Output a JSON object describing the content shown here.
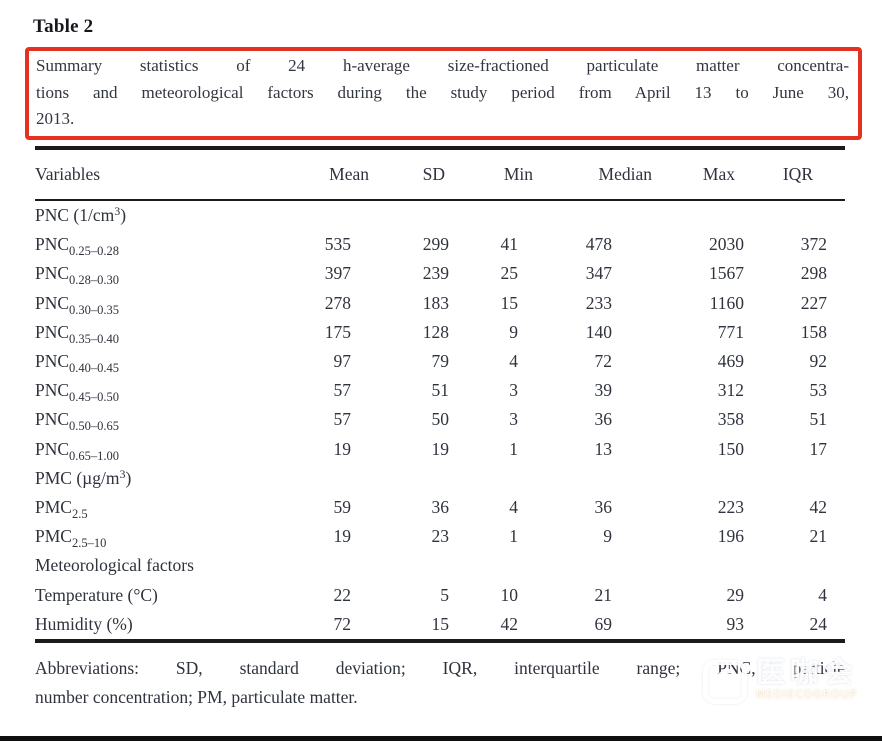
{
  "page": {
    "title": "Table 2",
    "caption_lines": [
      "Summary statistics of 24 h-average size-fractioned particulate matter concentra-",
      "tions and meteorological factors during the study period from April 13 to June 30,",
      "2013."
    ],
    "footnote_lines": [
      "Abbreviations: SD, standard deviation; IQR, interquartile range; PNC, particle",
      "number concentration; PM, particulate matter."
    ]
  },
  "table": {
    "headers": [
      "Variables",
      "Mean",
      "SD",
      "Min",
      "Median",
      "Max",
      "IQR"
    ],
    "rows": [
      {
        "kind": "section",
        "pre": "PNC (1/cm",
        "sup": "3",
        "post": ")"
      },
      {
        "kind": "data",
        "base": "PNC",
        "sub": "0.25–0.28",
        "values": [
          "535",
          "299",
          "41",
          "478",
          "2030",
          "372"
        ]
      },
      {
        "kind": "data",
        "base": "PNC",
        "sub": "0.28–0.30",
        "values": [
          "397",
          "239",
          "25",
          "347",
          "1567",
          "298"
        ]
      },
      {
        "kind": "data",
        "base": "PNC",
        "sub": "0.30–0.35",
        "values": [
          "278",
          "183",
          "15",
          "233",
          "1160",
          "227"
        ]
      },
      {
        "kind": "data",
        "base": "PNC",
        "sub": "0.35–0.40",
        "values": [
          "175",
          "128",
          "9",
          "140",
          "771",
          "158"
        ]
      },
      {
        "kind": "data",
        "base": "PNC",
        "sub": "0.40–0.45",
        "values": [
          "97",
          "79",
          "4",
          "72",
          "469",
          "92"
        ]
      },
      {
        "kind": "data",
        "base": "PNC",
        "sub": "0.45–0.50",
        "values": [
          "57",
          "51",
          "3",
          "39",
          "312",
          "53"
        ]
      },
      {
        "kind": "data",
        "base": "PNC",
        "sub": "0.50–0.65",
        "values": [
          "57",
          "50",
          "3",
          "36",
          "358",
          "51"
        ]
      },
      {
        "kind": "data",
        "base": "PNC",
        "sub": "0.65–1.00",
        "values": [
          "19",
          "19",
          "1",
          "13",
          "150",
          "17"
        ]
      },
      {
        "kind": "section",
        "pre": "PMC (µg/m",
        "sup": "3",
        "post": ")"
      },
      {
        "kind": "data",
        "base": "PMC",
        "sub": "2.5",
        "values": [
          "59",
          "36",
          "4",
          "36",
          "223",
          "42"
        ]
      },
      {
        "kind": "data",
        "base": "PMC",
        "sub": "2.5–10",
        "values": [
          "19",
          "23",
          "1",
          "9",
          "196",
          "21"
        ]
      },
      {
        "kind": "section",
        "pre": "Meteorological factors",
        "sup": "",
        "post": ""
      },
      {
        "kind": "data",
        "base": "Temperature (°C)",
        "sub": "",
        "values": [
          "22",
          "5",
          "10",
          "21",
          "29",
          "4"
        ]
      },
      {
        "kind": "data",
        "base": "Humidity (%)",
        "sub": "",
        "values": [
          "72",
          "15",
          "42",
          "69",
          "93",
          "24"
        ]
      }
    ]
  },
  "watermark": {
    "cn": "医咖会",
    "en": "MEDIECOGROUP",
    "icon": "swirl-logo-icon"
  },
  "colors": {
    "highlight_border": "#e53122",
    "text": "#2f333d",
    "rule": "#1b1b1b",
    "bottom_bar": "#0f0f0f"
  }
}
